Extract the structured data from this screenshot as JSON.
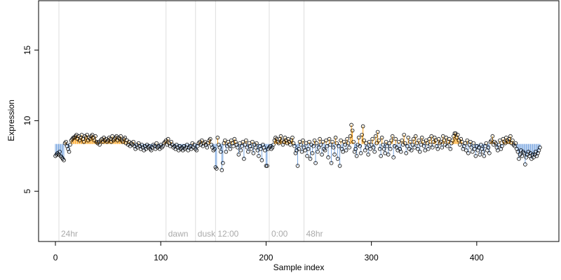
{
  "chart_data": {
    "type": "lollipop-scatter",
    "xlabel": "Sample index",
    "ylabel": "Expression",
    "xlim": [
      -16,
      478
    ],
    "ylim": [
      1.44,
      18.5
    ],
    "xticks": [
      0,
      100,
      200,
      300,
      400
    ],
    "yticks": [
      5,
      10,
      15
    ],
    "baseline": 8.35,
    "color_above": "#ffa31a",
    "color_below": "#7ba7e0",
    "point_color": "#000000",
    "annotations": [
      {
        "x": 3.3,
        "label": "24hr"
      },
      {
        "x": 105,
        "label": "dawn"
      },
      {
        "x": 133,
        "label": "dusk"
      },
      {
        "x": 152,
        "label": "12:00"
      },
      {
        "x": 203,
        "label": "0:00"
      },
      {
        "x": 236,
        "label": "48hr"
      }
    ],
    "values": [
      7.5,
      7.6,
      7.7,
      7.6,
      7.8,
      7.5,
      7.4,
      7.3,
      7.2,
      8.4,
      8.5,
      8.2,
      8.0,
      7.8,
      8.3,
      8.6,
      8.7,
      8.8,
      8.8,
      8.9,
      9.0,
      8.7,
      8.9,
      8.6,
      8.8,
      9.0,
      8.7,
      8.5,
      8.9,
      8.8,
      9.0,
      8.6,
      8.8,
      8.7,
      8.9,
      9.0,
      8.8,
      8.6,
      8.9,
      8.5,
      8.4,
      8.5,
      8.3,
      8.6,
      8.7,
      8.5,
      8.8,
      8.6,
      8.7,
      8.5,
      8.6,
      8.8,
      8.7,
      8.5,
      8.9,
      8.6,
      8.7,
      8.8,
      8.9,
      8.6,
      8.8,
      8.7,
      8.9,
      8.6,
      8.5,
      8.7,
      8.8,
      8.4,
      8.6,
      8.3,
      8.5,
      8.2,
      8.4,
      8.3,
      8.5,
      8.2,
      8.0,
      8.3,
      8.1,
      8.4,
      8.2,
      8.0,
      8.3,
      8.1,
      7.9,
      8.2,
      8.0,
      8.3,
      8.1,
      8.2,
      8.0,
      7.9,
      8.1,
      8.3,
      8.2,
      8.0,
      8.4,
      8.1,
      8.2,
      8.0,
      8.3,
      8.1,
      8.2,
      8.4,
      8.5,
      8.6,
      8.3,
      8.7,
      8.4,
      8.2,
      8.5,
      8.3,
      8.1,
      8.2,
      8.0,
      8.3,
      8.1,
      7.9,
      8.2,
      8.0,
      8.1,
      7.9,
      8.2,
      8.0,
      8.1,
      8.3,
      7.9,
      8.1,
      8.2,
      8.0,
      8.4,
      8.1,
      8.3,
      8.0,
      7.9,
      8.2,
      8.4,
      8.5,
      8.3,
      8.6,
      8.2,
      8.4,
      8.5,
      8.3,
      8.1,
      8.4,
      8.6,
      8.7,
      8.3,
      8.1,
      7.9,
      8.0,
      6.7,
      6.6,
      8.8,
      8.3,
      8.1,
      7.8,
      6.5,
      7.0,
      8.4,
      8.6,
      7.8,
      8.2,
      8.5,
      8.3,
      8.0,
      8.6,
      8.4,
      8.2,
      8.7,
      8.5,
      8.3,
      8.1,
      7.6,
      8.4,
      7.9,
      8.2,
      8.5,
      7.3,
      8.3,
      8.6,
      8.1,
      7.8,
      8.4,
      8.2,
      8.0,
      8.5,
      7.7,
      8.3,
      8.1,
      8.4,
      7.9,
      7.5,
      8.2,
      8.0,
      7.2,
      8.3,
      8.1,
      7.9,
      6.8,
      6.8,
      8.0,
      8.1,
      8.2,
      8.0,
      8.1,
      8.3,
      8.6,
      8.8,
      8.7,
      8.5,
      8.4,
      8.7,
      8.9,
      8.6,
      8.3,
      8.5,
      8.8,
      8.6,
      8.4,
      8.7,
      8.5,
      8.3,
      8.6,
      8.8,
      8.4,
      8.2,
      7.7,
      7.9,
      6.8,
      8.0,
      8.5,
      8.3,
      7.8,
      8.6,
      8.1,
      7.9,
      8.4,
      7.5,
      8.0,
      8.5,
      7.3,
      8.3,
      7.7,
      8.2,
      8.6,
      7.0,
      8.4,
      7.8,
      8.1,
      8.7,
      8.3,
      7.6,
      8.5,
      8.0,
      7.9,
      8.6,
      8.2,
      7.4,
      8.7,
      8.3,
      7.0,
      8.5,
      8.1,
      7.6,
      8.8,
      8.4,
      7.3,
      8.2,
      6.8,
      8.6,
      8.0,
      7.8,
      8.5,
      8.3,
      7.9,
      8.7,
      8.4,
      8.1,
      8.9,
      9.7,
      9.3,
      8.5,
      7.8,
      8.0,
      7.5,
      8.3,
      8.8,
      8.2,
      7.7,
      9.0,
      9.6,
      8.6,
      7.9,
      8.4,
      8.1,
      7.6,
      8.5,
      8.0,
      8.3,
      8.7,
      8.1,
      7.8,
      8.9,
      8.4,
      9.2,
      8.6,
      8.0,
      7.5,
      8.8,
      8.3,
      8.0,
      7.7,
      8.5,
      8.2,
      7.6,
      8.4,
      8.0,
      8.6,
      8.9,
      7.4,
      8.2,
      8.7,
      8.1,
      7.9,
      8.5,
      8.0,
      7.8,
      8.6,
      8.3,
      9.0,
      8.4,
      7.7,
      8.2,
      8.8,
      8.0,
      8.5,
      7.9,
      8.3,
      8.7,
      8.1,
      8.9,
      8.4,
      8.0,
      8.6,
      7.8,
      8.3,
      8.8,
      8.5,
      8.2,
      7.9,
      8.6,
      8.4,
      8.0,
      8.7,
      8.3,
      8.9,
      8.1,
      8.5,
      8.8,
      8.6,
      8.2,
      8.0,
      8.7,
      8.4,
      8.5,
      8.1,
      8.9,
      8.6,
      8.3,
      8.8,
      8.2,
      8.5,
      8.7,
      8.0,
      8.4,
      8.6,
      8.9,
      9.1,
      9.1,
      8.8,
      9.0,
      8.6,
      8.3,
      8.7,
      8.5,
      8.0,
      8.2,
      8.4,
      7.9,
      8.6,
      7.7,
      8.3,
      8.5,
      8.1,
      7.8,
      8.4,
      8.0,
      7.5,
      8.2,
      7.9,
      8.1,
      7.6,
      8.3,
      8.0,
      7.8,
      7.5,
      8.2,
      8.4,
      7.9,
      8.1,
      7.7,
      8.5,
      8.6,
      8.9,
      8.3,
      8.5,
      8.4,
      8.1,
      7.9,
      8.3,
      8.6,
      8.0,
      8.2,
      8.7,
      8.5,
      8.4,
      8.8,
      8.6,
      8.5,
      8.7,
      8.9,
      8.4,
      8.6,
      8.3,
      8.2,
      8.4,
      8.0,
      7.8,
      7.3,
      7.6,
      7.9,
      7.5,
      7.8,
      7.7,
      6.9,
      7.4,
      7.6,
      7.8,
      7.5,
      7.7,
      7.3,
      7.6,
      7.4,
      7.6,
      7.8,
      7.5,
      7.7,
      7.9,
      8.1
    ]
  }
}
